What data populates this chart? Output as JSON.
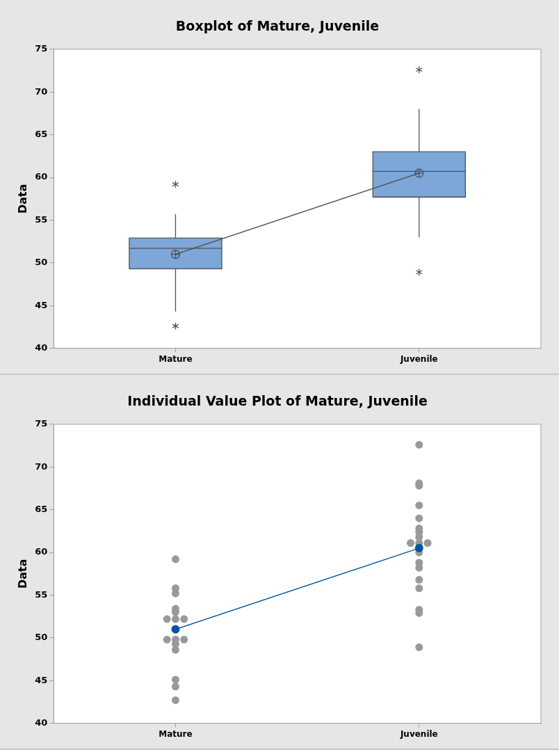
{
  "chart_data": [
    {
      "type": "box",
      "title": "Boxplot of Mature, Juvenile",
      "ylabel": "Data",
      "categories": [
        "Mature",
        "Juvenile"
      ],
      "color": "#7da7d9",
      "boxes": [
        {
          "low": 44.3,
          "q1": 49.3,
          "median": 51.7,
          "q3": 52.9,
          "high": 55.7,
          "mean": 51.0,
          "outliers": [
            59.2,
            42.6
          ]
        },
        {
          "low": 53.0,
          "q1": 57.7,
          "median": 60.7,
          "q3": 63.0,
          "high": 68.0,
          "mean": 60.5,
          "outliers": [
            72.6,
            48.9
          ]
        }
      ],
      "series": [
        {
          "type": "line",
          "values": [
            51.0,
            60.5
          ],
          "color": "#505050",
          "marker": "none"
        }
      ],
      "ylim": [
        40,
        75
      ],
      "yticks": [
        40,
        45,
        50,
        55,
        60,
        65,
        70,
        75
      ],
      "grid": false,
      "legend": false
    },
    {
      "type": "scatter",
      "title": "Individual Value Plot of Mature, Juvenile",
      "ylabel": "Data",
      "categories": [
        "Mature",
        "Juvenile"
      ],
      "series": [
        {
          "type": "scatter",
          "color": "#999999",
          "marker": "circle",
          "x": [
            "Mature",
            "Mature",
            "Mature",
            "Mature",
            "Mature",
            "Mature",
            "Mature",
            "Mature",
            "Mature",
            "Mature",
            "Mature",
            "Mature",
            "Mature",
            "Mature",
            "Mature",
            "Mature"
          ],
          "values": [
            59.2,
            55.8,
            55.2,
            53.4,
            53.0,
            52.2,
            52.2,
            52.2,
            49.8,
            49.8,
            49.8,
            49.3,
            48.6,
            45.1,
            44.3,
            42.7
          ]
        },
        {
          "type": "scatter",
          "color": "#999999",
          "marker": "circle",
          "x": [
            "Juvenile",
            "Juvenile",
            "Juvenile",
            "Juvenile",
            "Juvenile",
            "Juvenile",
            "Juvenile",
            "Juvenile",
            "Juvenile",
            "Juvenile",
            "Juvenile",
            "Juvenile",
            "Juvenile",
            "Juvenile",
            "Juvenile",
            "Juvenile",
            "Juvenile",
            "Juvenile",
            "Juvenile"
          ],
          "values": [
            72.6,
            68.1,
            67.8,
            65.5,
            64.0,
            62.8,
            62.4,
            61.8,
            61.1,
            61.1,
            61.1,
            60.0,
            58.8,
            58.2,
            56.8,
            55.8,
            53.3,
            52.9,
            48.9
          ]
        },
        {
          "type": "line",
          "values": [
            51.0,
            60.5
          ],
          "color": "#0054a6",
          "marker": "circle"
        }
      ],
      "ylim": [
        40,
        75
      ],
      "yticks": [
        40,
        45,
        50,
        55,
        60,
        65,
        70,
        75
      ],
      "grid": false,
      "legend": false
    }
  ]
}
